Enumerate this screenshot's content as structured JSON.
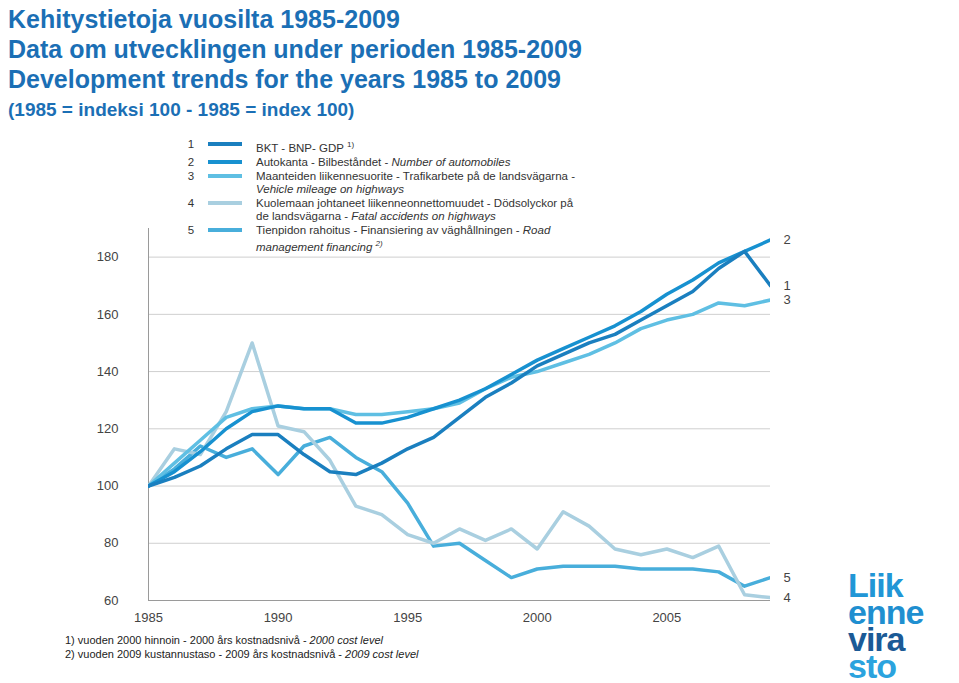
{
  "chart_data": {
    "type": "line",
    "title": [
      "Kehitystietoja vuosilta 1985-2009",
      "Data om utvecklingen under perioden 1985-2009",
      "Development trends for the years 1985 to 2009"
    ],
    "subtitle": "(1985 = indeksi 100 - 1985 = index 100)",
    "x": [
      1985,
      1986,
      1987,
      1988,
      1989,
      1990,
      1991,
      1992,
      1993,
      1994,
      1995,
      1996,
      1997,
      1998,
      1999,
      2000,
      2001,
      2002,
      2003,
      2004,
      2005,
      2006,
      2007,
      2008,
      2009
    ],
    "xlim": [
      1985,
      2009
    ],
    "xticks": [
      1985,
      1990,
      1995,
      2000,
      2005
    ],
    "ylim": [
      60,
      190
    ],
    "yticks": [
      60,
      80,
      100,
      120,
      140,
      160,
      180
    ],
    "grid": true,
    "legend": "top-left",
    "series": [
      {
        "label": "1",
        "name": "BKT - BNP- GDP 1)",
        "color": "#1a7fbf",
        "values": [
          100,
          103,
          107,
          113,
          118,
          118,
          111,
          105,
          104,
          108,
          113,
          117,
          124,
          131,
          136,
          142,
          146,
          150,
          153,
          158,
          163,
          168,
          176,
          182,
          170
        ]
      },
      {
        "label": "2",
        "name": "Autokanta - Bilbeståndet - Number of automobiles",
        "color": "#1791d0",
        "values": [
          100,
          105,
          112,
          120,
          126,
          128,
          127,
          127,
          122,
          122,
          124,
          127,
          130,
          134,
          139,
          144,
          148,
          152,
          156,
          161,
          167,
          172,
          178,
          182,
          186
        ]
      },
      {
        "label": "3",
        "name": "Maanteiden liikennesuorite - Trafikarbete på de landsvägarna - Vehicle mileage on highways",
        "color": "#5fbfe3",
        "values": [
          100,
          108,
          116,
          124,
          127,
          128,
          127,
          127,
          125,
          125,
          126,
          127,
          129,
          134,
          138,
          140,
          143,
          146,
          150,
          155,
          158,
          160,
          164,
          163,
          165
        ]
      },
      {
        "label": "4",
        "name": "Kuolemaan johtaneet liikenneonnettomuudet - Dödsolyckor på de landsvägarna - Fatal accidents on highways",
        "color": "#a9cfe0",
        "values": [
          100,
          113,
          111,
          126,
          150,
          121,
          119,
          109,
          93,
          90,
          83,
          80,
          85,
          81,
          85,
          78,
          91,
          86,
          78,
          76,
          78,
          75,
          79,
          62,
          61
        ]
      },
      {
        "label": "5",
        "name": "Tienpidon rahoitus - Finansiering av väghållningen - Road management financing 2)",
        "color": "#48aedb",
        "values": [
          100,
          106,
          114,
          110,
          113,
          104,
          114,
          117,
          110,
          105,
          94,
          79,
          80,
          74,
          68,
          71,
          72,
          72,
          72,
          71,
          71,
          71,
          70,
          65,
          68
        ]
      }
    ],
    "footnotes": [
      "1) vuoden 2000 hinnoin - 2000 års kostnadsnivå - 2000 cost level",
      "2) vuoden 2009 kustannustaso - 2009 års kostnadsnivå - 2009 cost level"
    ],
    "logo": [
      "Liik",
      "enne",
      "vira",
      "sto"
    ]
  }
}
